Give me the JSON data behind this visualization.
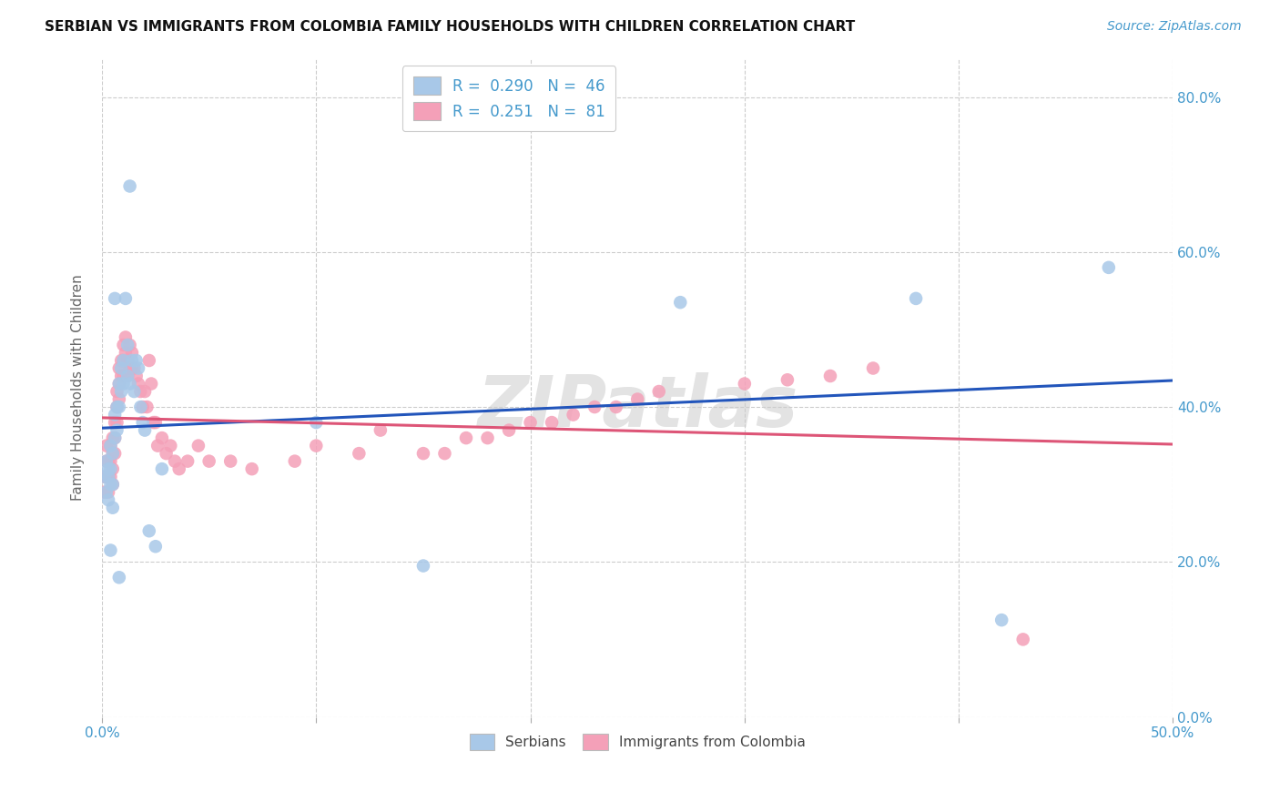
{
  "title": "SERBIAN VS IMMIGRANTS FROM COLOMBIA FAMILY HOUSEHOLDS WITH CHILDREN CORRELATION CHART",
  "source": "Source: ZipAtlas.com",
  "serbian_color": "#a8c8e8",
  "colombia_color": "#f4a0b8",
  "trendline_serbian_color": "#2255bb",
  "trendline_colombia_color": "#dd5577",
  "xlim": [
    0.0,
    0.5
  ],
  "ylim": [
    0.0,
    0.85
  ],
  "x_ticks": [
    0.0,
    0.1,
    0.2,
    0.3,
    0.4,
    0.5
  ],
  "y_ticks": [
    0.0,
    0.2,
    0.4,
    0.6,
    0.8
  ],
  "serbian_x": [
    0.001,
    0.002,
    0.002,
    0.003,
    0.003,
    0.003,
    0.004,
    0.004,
    0.004,
    0.005,
    0.005,
    0.005,
    0.006,
    0.006,
    0.007,
    0.007,
    0.008,
    0.008,
    0.009,
    0.009,
    0.01,
    0.01,
    0.011,
    0.012,
    0.012,
    0.013,
    0.014,
    0.015,
    0.016,
    0.017,
    0.018,
    0.019,
    0.02,
    0.022,
    0.025,
    0.028,
    0.1,
    0.15,
    0.27,
    0.38,
    0.42,
    0.47,
    0.013,
    0.004,
    0.006,
    0.008
  ],
  "serbian_y": [
    0.31,
    0.29,
    0.33,
    0.32,
    0.31,
    0.28,
    0.35,
    0.32,
    0.3,
    0.34,
    0.3,
    0.27,
    0.39,
    0.36,
    0.4,
    0.37,
    0.43,
    0.4,
    0.45,
    0.42,
    0.46,
    0.43,
    0.54,
    0.48,
    0.44,
    0.43,
    0.46,
    0.42,
    0.46,
    0.45,
    0.4,
    0.38,
    0.37,
    0.24,
    0.22,
    0.32,
    0.38,
    0.195,
    0.535,
    0.54,
    0.125,
    0.58,
    0.685,
    0.215,
    0.54,
    0.18
  ],
  "colombia_x": [
    0.001,
    0.001,
    0.002,
    0.002,
    0.002,
    0.003,
    0.003,
    0.003,
    0.004,
    0.004,
    0.004,
    0.005,
    0.005,
    0.005,
    0.005,
    0.006,
    0.006,
    0.006,
    0.007,
    0.007,
    0.007,
    0.008,
    0.008,
    0.008,
    0.009,
    0.009,
    0.01,
    0.01,
    0.01,
    0.011,
    0.011,
    0.012,
    0.012,
    0.013,
    0.013,
    0.014,
    0.014,
    0.015,
    0.016,
    0.017,
    0.018,
    0.019,
    0.02,
    0.021,
    0.022,
    0.023,
    0.024,
    0.025,
    0.026,
    0.028,
    0.03,
    0.032,
    0.034,
    0.036,
    0.04,
    0.045,
    0.05,
    0.06,
    0.07,
    0.09,
    0.1,
    0.12,
    0.13,
    0.15,
    0.16,
    0.17,
    0.18,
    0.19,
    0.2,
    0.21,
    0.22,
    0.23,
    0.24,
    0.25,
    0.26,
    0.3,
    0.32,
    0.34,
    0.36,
    0.43
  ],
  "colombia_y": [
    0.31,
    0.29,
    0.33,
    0.35,
    0.31,
    0.33,
    0.31,
    0.29,
    0.35,
    0.33,
    0.31,
    0.36,
    0.34,
    0.32,
    0.3,
    0.38,
    0.36,
    0.34,
    0.42,
    0.4,
    0.38,
    0.45,
    0.43,
    0.41,
    0.46,
    0.44,
    0.48,
    0.46,
    0.44,
    0.49,
    0.47,
    0.46,
    0.44,
    0.48,
    0.45,
    0.47,
    0.45,
    0.45,
    0.44,
    0.43,
    0.42,
    0.4,
    0.42,
    0.4,
    0.46,
    0.43,
    0.38,
    0.38,
    0.35,
    0.36,
    0.34,
    0.35,
    0.33,
    0.32,
    0.33,
    0.35,
    0.33,
    0.33,
    0.32,
    0.33,
    0.35,
    0.34,
    0.37,
    0.34,
    0.34,
    0.36,
    0.36,
    0.37,
    0.38,
    0.38,
    0.39,
    0.4,
    0.4,
    0.41,
    0.42,
    0.43,
    0.435,
    0.44,
    0.45,
    0.1
  ]
}
